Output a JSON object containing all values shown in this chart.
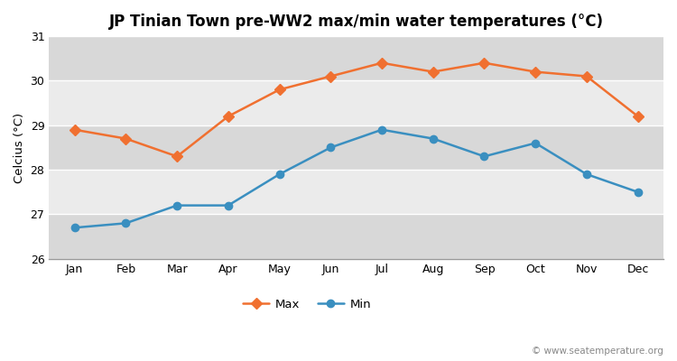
{
  "title": "JP Tinian Town pre-WW2 max/min water temperatures (°C)",
  "ylabel": "Celcius (°C)",
  "months": [
    "Jan",
    "Feb",
    "Mar",
    "Apr",
    "May",
    "Jun",
    "Jul",
    "Aug",
    "Sep",
    "Oct",
    "Nov",
    "Dec"
  ],
  "max_values": [
    28.9,
    28.7,
    28.3,
    29.2,
    29.8,
    30.1,
    30.4,
    30.2,
    30.4,
    30.2,
    30.1,
    29.2
  ],
  "min_values": [
    26.7,
    26.8,
    27.2,
    27.2,
    27.9,
    28.5,
    28.9,
    28.7,
    28.3,
    28.6,
    27.9,
    27.5
  ],
  "max_color": "#f07030",
  "min_color": "#3a8fc0",
  "ylim": [
    26.0,
    31.0
  ],
  "yticks": [
    26,
    27,
    28,
    29,
    30,
    31
  ],
  "fig_bg_color": "#ffffff",
  "band_light": "#ebebeb",
  "band_dark": "#d8d8d8",
  "watermark": "© www.seatemperature.org",
  "legend_max": "Max",
  "legend_min": "Min",
  "title_fontsize": 12,
  "axis_fontsize": 9.5,
  "tick_fontsize": 9,
  "legend_fontsize": 9.5
}
